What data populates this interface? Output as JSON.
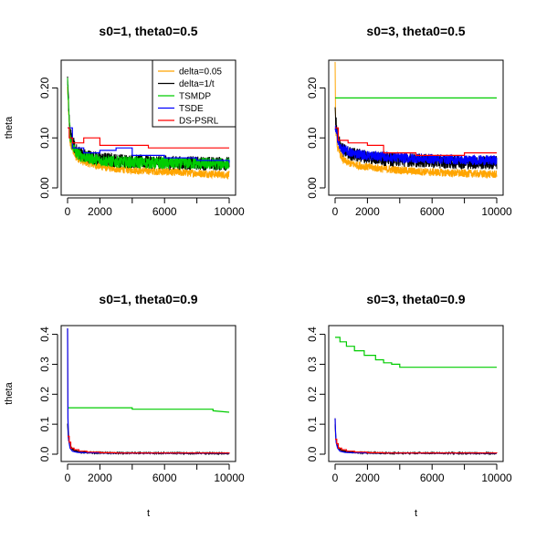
{
  "colors": {
    "delta=0.05": "#FFA500",
    "delta=1/t": "#000000",
    "TSMDP": "#00CC00",
    "TSDE": "#0000FF",
    "DS-PSRL": "#FF0000"
  },
  "legend": {
    "placement": "top-right of first panel",
    "entries": [
      "delta=0.05",
      "delta=1/t",
      "TSMDP",
      "TSDE",
      "DS-PSRL"
    ]
  },
  "chart_data": [
    {
      "type": "line",
      "title": "s0=1, theta0=0.5",
      "xlabel": "",
      "ylabel": "theta",
      "xlim": [
        0,
        10000
      ],
      "ylim": [
        0,
        0.25
      ],
      "xticks": [
        0,
        2000,
        6000,
        10000
      ],
      "yticks": [
        0.0,
        0.1,
        0.2
      ],
      "ytick_labels": [
        "0.00",
        "0.10",
        "0.20"
      ],
      "series": [
        {
          "name": "delta=0.05",
          "x": [
            0,
            150,
            500,
            1000,
            2000,
            3000,
            5000,
            7000,
            10000
          ],
          "y": [
            0.2,
            0.09,
            0.062,
            0.052,
            0.043,
            0.038,
            0.034,
            0.031,
            0.026
          ],
          "noise": 0.008
        },
        {
          "name": "delta=1/t",
          "x": [
            0,
            150,
            500,
            1000,
            2000,
            3000,
            5000,
            7000,
            10000
          ],
          "y": [
            0.21,
            0.11,
            0.075,
            0.065,
            0.058,
            0.055,
            0.052,
            0.05,
            0.048
          ],
          "noise": 0.014
        },
        {
          "name": "TSMDP",
          "x": [
            0,
            150,
            500,
            1000,
            2000,
            3000,
            5000,
            10000
          ],
          "y": [
            0.21,
            0.1,
            0.07,
            0.062,
            0.055,
            0.052,
            0.05,
            0.048
          ],
          "noise": 0.012
        },
        {
          "name": "TSDE",
          "x": [
            0,
            300,
            1000,
            2000,
            3000,
            4000,
            5000,
            6000,
            7000,
            8000,
            9000,
            10000
          ],
          "y": [
            0.12,
            0.08,
            0.07,
            0.075,
            0.08,
            0.065,
            0.065,
            0.06,
            0.06,
            0.055,
            0.055,
            0.05
          ],
          "step": true
        },
        {
          "name": "DS-PSRL",
          "x": [
            0,
            100,
            300,
            1000,
            2000,
            5000,
            8000,
            9000,
            10000
          ],
          "y": [
            0.12,
            0.1,
            0.09,
            0.1,
            0.085,
            0.08,
            0.08,
            0.08,
            0.08
          ],
          "step": true
        }
      ]
    },
    {
      "type": "line",
      "title": "s0=3, theta0=0.5",
      "xlabel": "",
      "ylabel": "",
      "xlim": [
        0,
        10000
      ],
      "ylim": [
        0,
        0.25
      ],
      "xticks": [
        0,
        2000,
        6000,
        10000
      ],
      "yticks": [
        0.0,
        0.1,
        0.2
      ],
      "ytick_labels": [
        "0.00",
        "0.10",
        "0.20"
      ],
      "series": [
        {
          "name": "delta=0.05",
          "x": [
            0,
            30,
            150,
            500,
            1000,
            2000,
            3000,
            5000,
            7000,
            10000
          ],
          "y": [
            0.26,
            0.12,
            0.08,
            0.055,
            0.048,
            0.042,
            0.038,
            0.033,
            0.03,
            0.027
          ],
          "noise": 0.008
        },
        {
          "name": "delta=1/t",
          "x": [
            0,
            150,
            500,
            1000,
            2000,
            3000,
            5000,
            7000,
            10000
          ],
          "y": [
            0.15,
            0.1,
            0.075,
            0.068,
            0.062,
            0.058,
            0.055,
            0.052,
            0.05
          ],
          "noise": 0.014
        },
        {
          "name": "TSMDP",
          "x": [
            0,
            10000
          ],
          "y": [
            0.18,
            0.18
          ]
        },
        {
          "name": "TSDE",
          "x": [
            0,
            300,
            1000,
            2000,
            4000,
            6000,
            8000,
            10000
          ],
          "y": [
            0.12,
            0.08,
            0.07,
            0.065,
            0.06,
            0.058,
            0.056,
            0.055
          ],
          "noise": 0.01
        },
        {
          "name": "DS-PSRL",
          "x": [
            0,
            200,
            800,
            1500,
            2000,
            3000,
            5000,
            8000,
            8500,
            10000
          ],
          "y": [
            0.12,
            0.095,
            0.09,
            0.09,
            0.085,
            0.07,
            0.065,
            0.07,
            0.07,
            0.07
          ],
          "step": true
        }
      ]
    },
    {
      "type": "line",
      "title": "s0=1, theta0=0.9",
      "xlabel": "t",
      "ylabel": "theta",
      "xlim": [
        0,
        10000
      ],
      "ylim": [
        0,
        0.42
      ],
      "xticks": [
        0,
        2000,
        6000,
        10000
      ],
      "yticks": [
        0.0,
        0.1,
        0.2,
        0.3,
        0.4
      ],
      "ytick_labels": [
        "0.0",
        "0.1",
        "0.2",
        "0.3",
        "0.4"
      ],
      "series": [
        {
          "name": "delta=0.05",
          "x": [
            0,
            30,
            100,
            300,
            600,
            1000,
            2000,
            10000
          ],
          "y": [
            0.42,
            0.1,
            0.04,
            0.015,
            0.008,
            0.005,
            0.004,
            0.003
          ]
        },
        {
          "name": "delta=1/t",
          "x": [
            0,
            50,
            150,
            400,
            800,
            1500,
            3000,
            10000
          ],
          "y": [
            0.1,
            0.05,
            0.025,
            0.012,
            0.007,
            0.005,
            0.004,
            0.003
          ],
          "noise": 0.002
        },
        {
          "name": "TSMDP",
          "x": [
            0,
            4000,
            4000,
            9000,
            9000,
            10000
          ],
          "y": [
            0.155,
            0.155,
            0.15,
            0.15,
            0.145,
            0.14
          ]
        },
        {
          "name": "TSDE",
          "x": [
            0,
            20,
            60,
            150,
            300,
            600,
            1000,
            2000,
            10000
          ],
          "y": [
            0.42,
            0.12,
            0.05,
            0.02,
            0.01,
            0.006,
            0.005,
            0.004,
            0.003
          ]
        },
        {
          "name": "DS-PSRL",
          "x": [
            0,
            100,
            200,
            400,
            700,
            1200,
            2000,
            3000,
            10000
          ],
          "y": [
            0.06,
            0.04,
            0.02,
            0.015,
            0.01,
            0.007,
            0.005,
            0.004,
            0.003
          ],
          "step": true
        }
      ]
    },
    {
      "type": "line",
      "title": "s0=3, theta0=0.9",
      "xlabel": "t",
      "ylabel": "",
      "xlim": [
        0,
        10000
      ],
      "ylim": [
        0,
        0.42
      ],
      "xticks": [
        0,
        2000,
        6000,
        10000
      ],
      "yticks": [
        0.0,
        0.1,
        0.2,
        0.3,
        0.4
      ],
      "ytick_labels": [
        "0.0",
        "0.1",
        "0.2",
        "0.3",
        "0.4"
      ],
      "series": [
        {
          "name": "delta=0.05",
          "x": [
            0,
            30,
            100,
            300,
            600,
            1000,
            2000,
            10000
          ],
          "y": [
            0.12,
            0.06,
            0.03,
            0.012,
            0.007,
            0.005,
            0.004,
            0.003
          ]
        },
        {
          "name": "delta=1/t",
          "x": [
            0,
            50,
            150,
            400,
            800,
            1500,
            3000,
            10000
          ],
          "y": [
            0.1,
            0.05,
            0.025,
            0.012,
            0.007,
            0.005,
            0.004,
            0.003
          ],
          "noise": 0.002
        },
        {
          "name": "TSMDP",
          "x": [
            0,
            300,
            700,
            1200,
            1800,
            2500,
            3000,
            3500,
            4000,
            6000,
            8000,
            10000
          ],
          "y": [
            0.39,
            0.375,
            0.36,
            0.345,
            0.33,
            0.315,
            0.305,
            0.3,
            0.29,
            0.29,
            0.29,
            0.29
          ],
          "step": true
        },
        {
          "name": "TSDE",
          "x": [
            0,
            20,
            60,
            150,
            300,
            600,
            1000,
            2000,
            10000
          ],
          "y": [
            0.12,
            0.08,
            0.04,
            0.02,
            0.01,
            0.006,
            0.005,
            0.004,
            0.003
          ]
        },
        {
          "name": "DS-PSRL",
          "x": [
            0,
            100,
            200,
            400,
            700,
            1200,
            2000,
            3000,
            10000
          ],
          "y": [
            0.05,
            0.035,
            0.02,
            0.015,
            0.01,
            0.007,
            0.005,
            0.004,
            0.003
          ],
          "step": true
        }
      ]
    }
  ]
}
